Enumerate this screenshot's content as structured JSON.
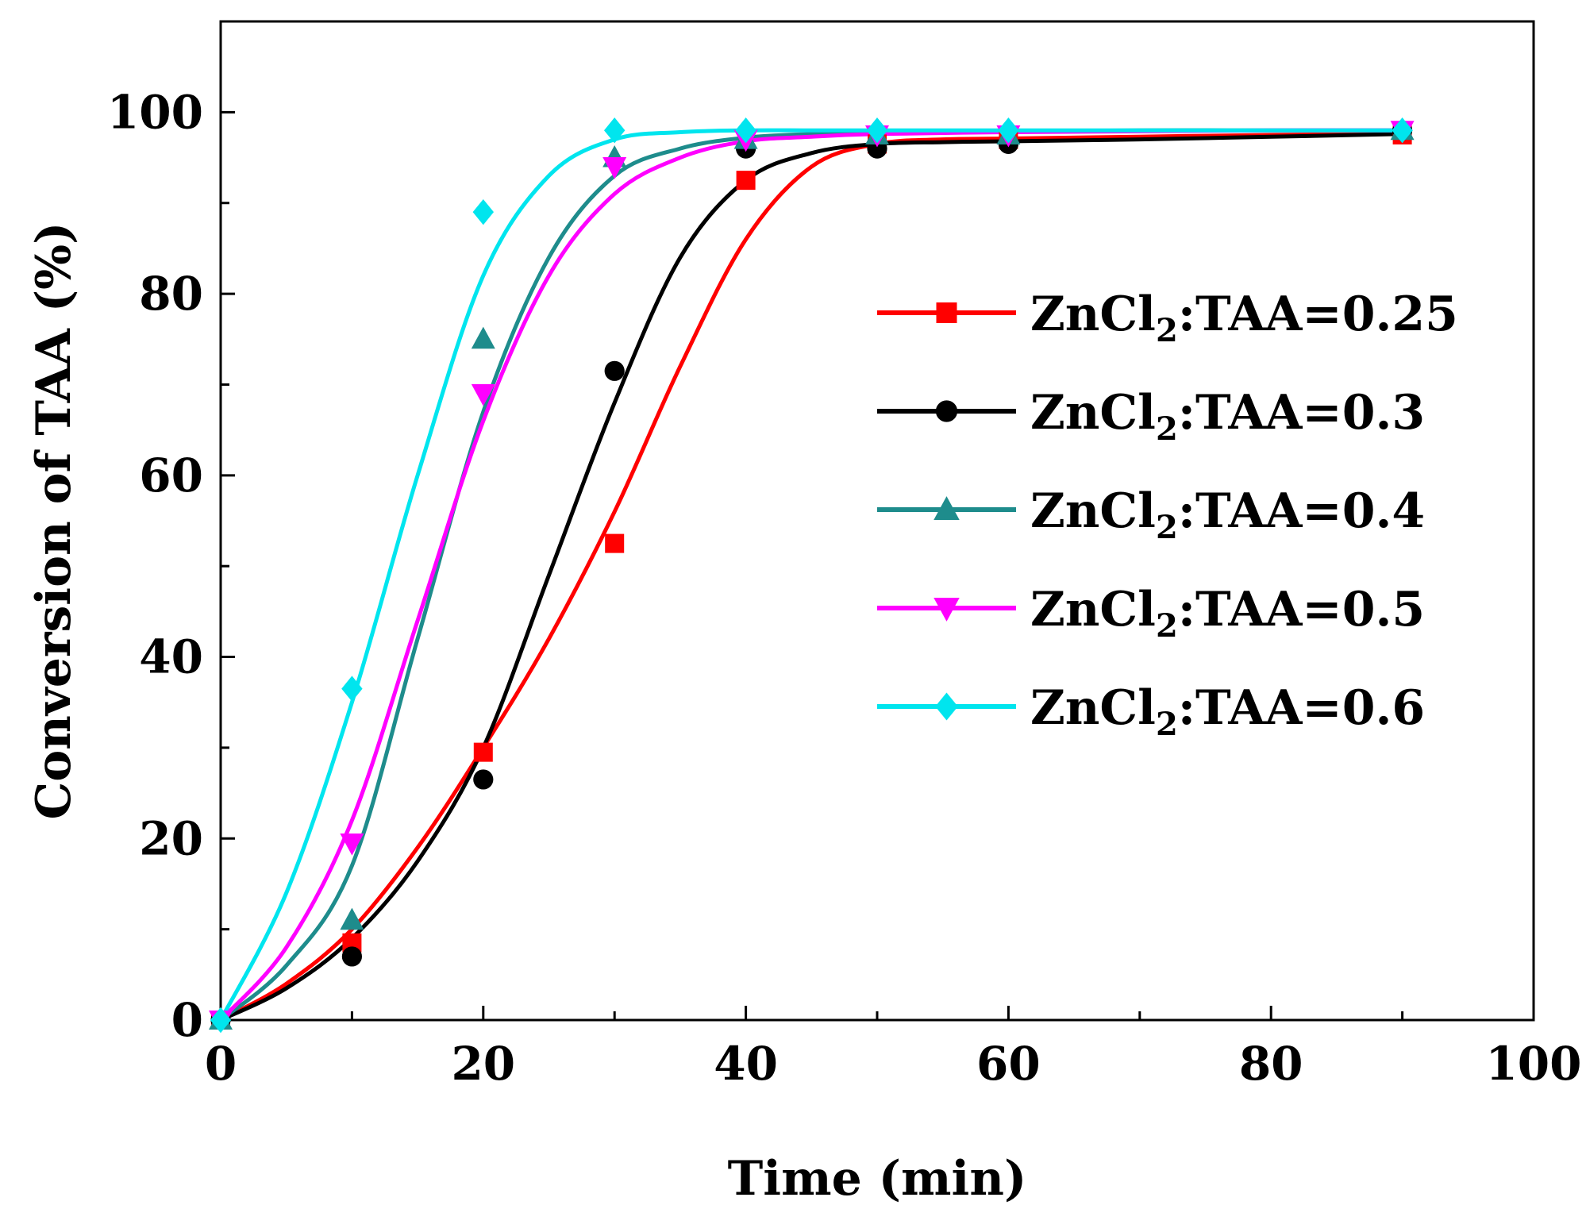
{
  "chart_data": {
    "type": "line",
    "title": "",
    "xlabel": "Time (min)",
    "ylabel": "Conversion of TAA (%)",
    "xlim": [
      0,
      100
    ],
    "ylim": [
      0,
      110
    ],
    "xticks": [
      0,
      20,
      40,
      60,
      80,
      100
    ],
    "yticks": [
      0,
      20,
      40,
      60,
      80,
      100
    ],
    "grid": false,
    "legend_position": "center-right",
    "series": [
      {
        "name": "ZnCl2:TAA=0.25",
        "legend_prefix": "ZnCl",
        "legend_sub": "2",
        "legend_suffix": ":TAA=0.25",
        "color": "#ff0000",
        "marker": "square",
        "x": [
          0,
          10,
          20,
          30,
          40,
          50,
          60,
          90
        ],
        "y": [
          0,
          8.5,
          29.5,
          52.5,
          92.5,
          96.5,
          97,
          97.5
        ],
        "fit_x": [
          0,
          5,
          10,
          15,
          20,
          25,
          30,
          35,
          40,
          45,
          50,
          55,
          60,
          70,
          80,
          90
        ],
        "fit_y": [
          0,
          4,
          10,
          19,
          30,
          42,
          56,
          72,
          86,
          94,
          96.5,
          97,
          97.1,
          97.3,
          97.5,
          97.6
        ]
      },
      {
        "name": "ZnCl2:TAA=0.3",
        "legend_prefix": "ZnCl",
        "legend_sub": "2",
        "legend_suffix": ":TAA=0.3",
        "color": "#000000",
        "marker": "circle",
        "x": [
          0,
          10,
          20,
          30,
          40,
          50,
          60,
          90
        ],
        "y": [
          0,
          7,
          26.5,
          71.5,
          96,
          96,
          96.5,
          98
        ],
        "fit_x": [
          0,
          5,
          10,
          15,
          20,
          25,
          30,
          35,
          40,
          45,
          50,
          55,
          60,
          70,
          80,
          90
        ],
        "fit_y": [
          0,
          3.5,
          9,
          17.5,
          30,
          49,
          68,
          84,
          92.5,
          95.5,
          96.5,
          96.7,
          96.8,
          97,
          97.3,
          97.6
        ]
      },
      {
        "name": "ZnCl2:TAA=0.4",
        "legend_prefix": "ZnCl",
        "legend_sub": "2",
        "legend_suffix": ":TAA=0.4",
        "color": "#1e8c8c",
        "marker": "triangle-up",
        "x": [
          0,
          10,
          20,
          30,
          40,
          50,
          60,
          90
        ],
        "y": [
          0,
          11,
          75,
          95,
          97,
          97.5,
          97.5,
          98
        ],
        "fit_x": [
          0,
          5,
          10,
          15,
          20,
          25,
          30,
          35,
          40,
          45,
          50,
          60,
          70,
          80,
          90
        ],
        "fit_y": [
          0,
          6,
          17,
          42,
          67,
          84,
          93,
          96,
          97.2,
          97.6,
          97.8,
          97.9,
          98,
          98,
          98
        ]
      },
      {
        "name": "ZnCl2:TAA=0.5",
        "legend_prefix": "ZnCl",
        "legend_sub": "2",
        "legend_suffix": ":TAA=0.5",
        "color": "#ff00ff",
        "marker": "triangle-down",
        "x": [
          0,
          10,
          20,
          30,
          40,
          50,
          60,
          90
        ],
        "y": [
          0,
          19.5,
          69,
          94,
          97,
          97.5,
          97.5,
          98
        ],
        "fit_x": [
          0,
          5,
          10,
          15,
          20,
          25,
          30,
          35,
          40,
          45,
          50,
          60,
          70,
          80,
          90
        ],
        "fit_y": [
          0,
          8,
          22,
          44,
          66,
          82,
          91,
          95,
          96.8,
          97.3,
          97.6,
          97.8,
          97.9,
          98,
          98
        ]
      },
      {
        "name": "ZnCl2:TAA=0.6",
        "legend_prefix": "ZnCl",
        "legend_sub": "2",
        "legend_suffix": ":TAA=0.6",
        "color": "#00e5ee",
        "marker": "diamond",
        "x": [
          0,
          10,
          20,
          30,
          40,
          50,
          60,
          90
        ],
        "y": [
          0,
          36.5,
          89,
          98,
          98,
          98,
          98,
          98
        ],
        "fit_x": [
          0,
          5,
          10,
          15,
          20,
          25,
          30,
          35,
          40,
          45,
          50,
          60,
          70,
          80,
          90
        ],
        "fit_y": [
          0,
          14,
          35,
          60,
          82,
          93,
          97,
          97.8,
          98,
          98,
          98,
          98,
          98,
          98,
          98
        ]
      }
    ]
  }
}
